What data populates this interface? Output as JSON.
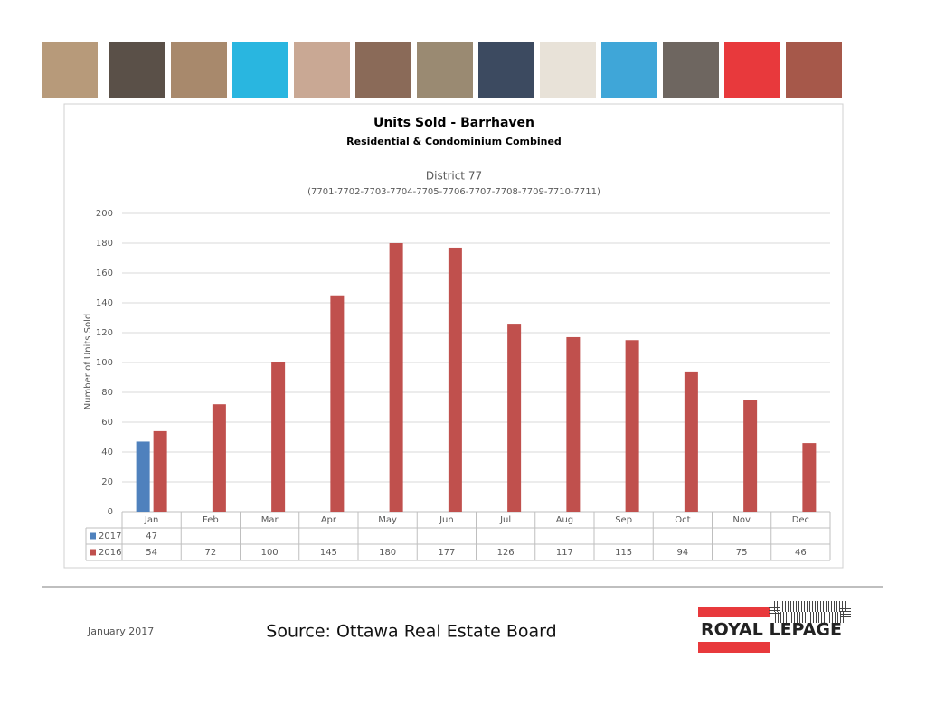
{
  "chart_data": {
    "type": "bar",
    "title": "Units Sold - Barrhaven",
    "subtitle": "Residential & Condominium Combined",
    "district": "District 77",
    "district_codes": "(7701-7702-7703-7704-7705-7706-7707-7708-7709-7710-7711)",
    "y_label": "Number of Units Sold",
    "categories": [
      "Jan",
      "Feb",
      "Mar",
      "Apr",
      "May",
      "Jun",
      "Jul",
      "Aug",
      "Sep",
      "Oct",
      "Nov",
      "Dec"
    ],
    "series": [
      {
        "name": "2017",
        "color": "#4f81bd",
        "values": [
          47,
          null,
          null,
          null,
          null,
          null,
          null,
          null,
          null,
          null,
          null,
          null
        ]
      },
      {
        "name": "2016",
        "color": "#c0504d",
        "values": [
          54,
          72,
          100,
          145,
          180,
          177,
          126,
          117,
          115,
          94,
          75,
          46
        ]
      }
    ],
    "ylim": [
      0,
      200
    ],
    "yticks": [
      0,
      20,
      40,
      60,
      80,
      100,
      120,
      140,
      160,
      180,
      200
    ],
    "grid": true
  },
  "footer": {
    "date": "January 2017",
    "source": "Source: Ottawa Real Estate Board"
  },
  "logo": {
    "text": "ROYAL LEPAGE"
  }
}
